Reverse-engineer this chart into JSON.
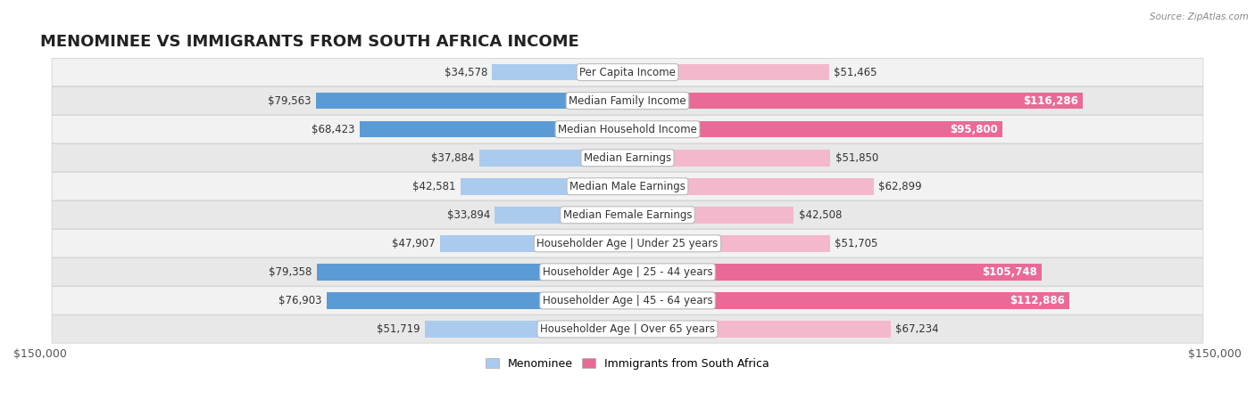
{
  "title": "MENOMINEE VS IMMIGRANTS FROM SOUTH AFRICA INCOME",
  "source": "Source: ZipAtlas.com",
  "categories": [
    "Per Capita Income",
    "Median Family Income",
    "Median Household Income",
    "Median Earnings",
    "Median Male Earnings",
    "Median Female Earnings",
    "Householder Age | Under 25 years",
    "Householder Age | 25 - 44 years",
    "Householder Age | 45 - 64 years",
    "Householder Age | Over 65 years"
  ],
  "menominee_values": [
    34578,
    79563,
    68423,
    37884,
    42581,
    33894,
    47907,
    79358,
    76903,
    51719
  ],
  "immigrant_values": [
    51465,
    116286,
    95800,
    51850,
    62899,
    42508,
    51705,
    105748,
    112886,
    67234
  ],
  "menominee_labels": [
    "$34,578",
    "$79,563",
    "$68,423",
    "$37,884",
    "$42,581",
    "$33,894",
    "$47,907",
    "$79,358",
    "$76,903",
    "$51,719"
  ],
  "immigrant_labels": [
    "$51,465",
    "$116,286",
    "$95,800",
    "$51,850",
    "$62,899",
    "$42,508",
    "$51,705",
    "$105,748",
    "$112,886",
    "$67,234"
  ],
  "color_menominee_light": "#aacbee",
  "color_menominee_dark": "#5b9bd5",
  "color_immigrant_light": "#f4b8cc",
  "color_immigrant_dark": "#e96a97",
  "color_row_bg_light": "#f2f2f2",
  "color_row_bg_dark": "#e8e8e8",
  "max_value": 150000,
  "bar_height": 0.58,
  "background_color": "#ffffff",
  "title_fontsize": 13,
  "label_fontsize": 8.5,
  "value_fontsize": 8.5,
  "axis_label_fontsize": 9,
  "legend_fontsize": 9,
  "menominee_threshold": 60000,
  "immigrant_threshold": 90000
}
